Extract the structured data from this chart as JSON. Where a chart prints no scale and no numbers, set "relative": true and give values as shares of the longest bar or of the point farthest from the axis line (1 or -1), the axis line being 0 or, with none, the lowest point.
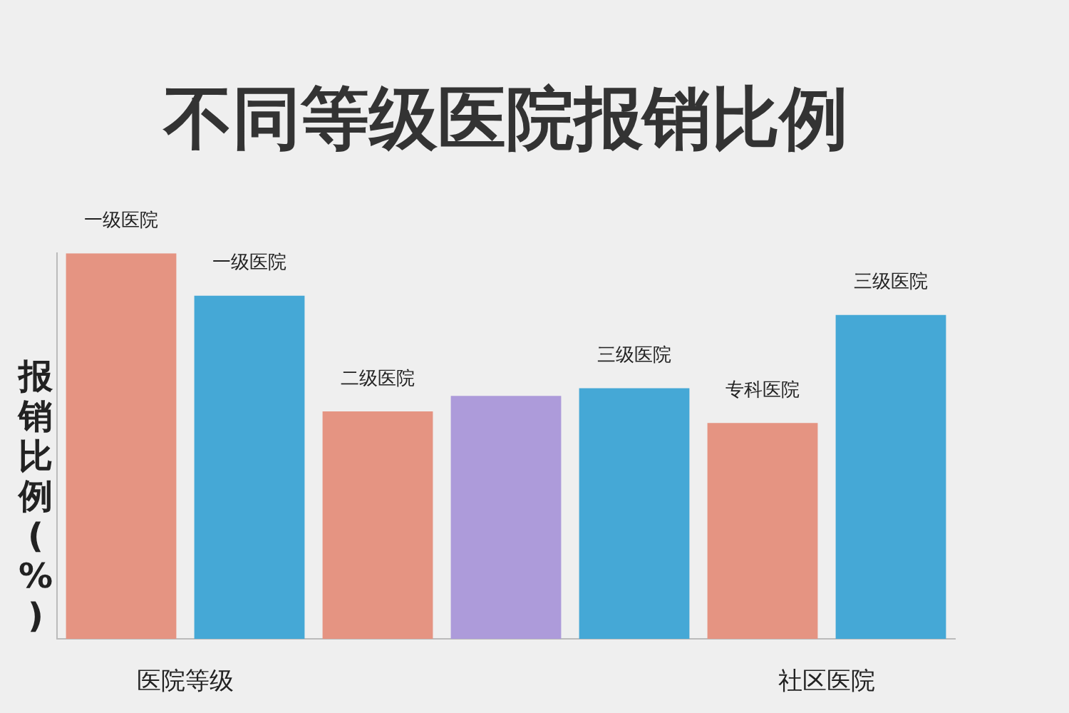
{
  "chart_data": {
    "type": "bar",
    "title": "不同等级医院报销比例",
    "ylabel": "报销比例(%)",
    "relative": true,
    "categories": [
      "一级医院",
      "一级医院",
      "二级医院",
      null,
      "三级医院",
      "专科医院",
      "三级医院"
    ],
    "values": [
      1,
      0.89,
      0.59,
      0.63,
      0.65,
      0.56,
      0.84
    ],
    "colors": [
      "#e59482",
      "#45a8d6",
      "#e59482",
      "#ad9bda",
      "#45a8d6",
      "#e59482",
      "#45a8d6"
    ],
    "annotations": [
      "医院等级",
      "社区医院"
    ],
    "grid": false,
    "legend": false
  }
}
